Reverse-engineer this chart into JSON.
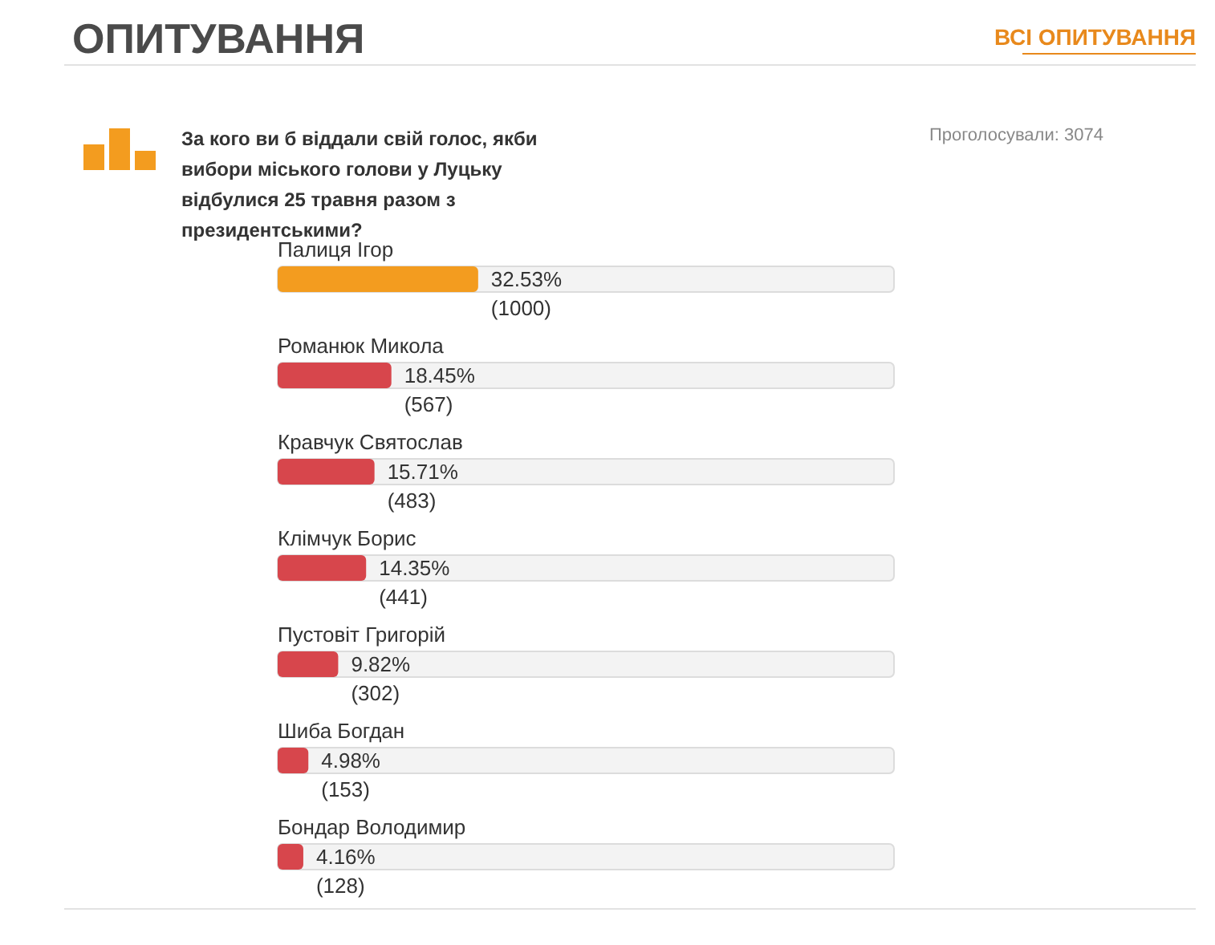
{
  "chart_data": {
    "type": "bar",
    "orientation": "horizontal",
    "title": "ОПИТУВАННЯ",
    "subtitle": "За кого ви б віддали свій голос, якби вибори міського голови у Луцьку відбулися 25 травня разом з президентськими?",
    "annotations": [
      "ВСІ ОПИТУВАННЯ",
      "Проголосували: 3074"
    ],
    "categories": [
      "Палиця Ігор",
      "Романюк Микола",
      "Кравчук Святослав",
      "Клімчук Борис",
      "Пустовіт Григорій",
      "Шиба Богдан",
      "Бондар Володимир"
    ],
    "values": [
      32.53,
      18.45,
      15.71,
      14.35,
      9.82,
      4.98,
      4.16
    ],
    "value_labels": [
      "32.53%\n(1000)",
      "18.45%\n(567)",
      "15.71%\n(483)",
      "14.35%\n(441)",
      "9.82%\n(302)",
      "4.98%\n(153)",
      "4.16%\n(128)"
    ],
    "colors": [
      "#f39c1f",
      "#d7464c",
      "#d7464c",
      "#d7464c",
      "#d7464c",
      "#d7464c",
      "#d7464c"
    ],
    "xlim": [
      0,
      100
    ]
  }
}
